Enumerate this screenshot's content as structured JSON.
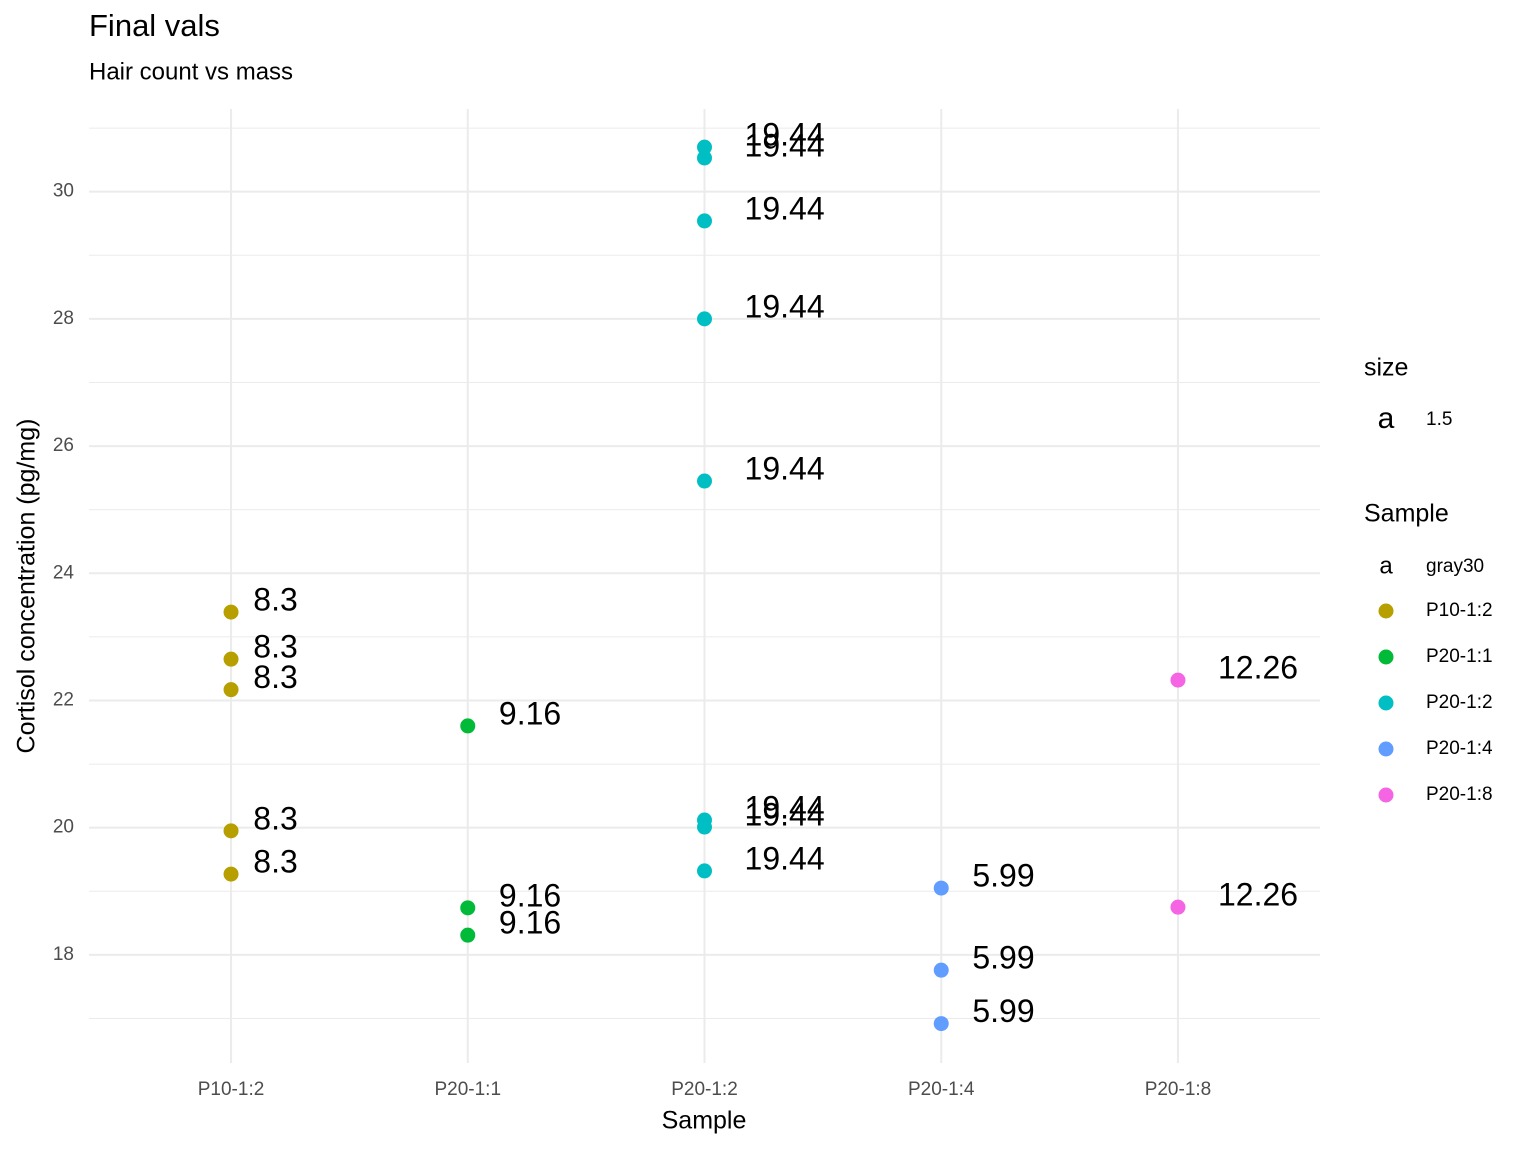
{
  "chart_data": {
    "type": "scatter",
    "title": "Final vals",
    "subtitle": "Hair count vs mass",
    "x_label": "Sample",
    "y_label": "Cortisol concentration (pg/mg)",
    "categories": [
      "P10-1:2",
      "P20-1:1",
      "P20-1:2",
      "P20-1:4",
      "P20-1:8"
    ],
    "ylim": [
      16.3,
      31.3
    ],
    "yticks": [
      18,
      20,
      22,
      24,
      26,
      28,
      30
    ],
    "y_minor_ticks": [
      17,
      19,
      21,
      23,
      25,
      27,
      29,
      31
    ],
    "grid": true,
    "label_color": "#F8766D",
    "series": [
      {
        "name": "P10-1:2",
        "color": "#B79F00",
        "x": "P10-1:2",
        "values": [
          23.39,
          22.65,
          22.17,
          19.95,
          19.27
        ],
        "labels": [
          8.3,
          8.3,
          8.3,
          8.3,
          8.3
        ]
      },
      {
        "name": "P20-1:1",
        "color": "#00BA38",
        "x": "P20-1:1",
        "values": [
          21.6,
          18.74,
          18.31
        ],
        "labels": [
          9.16,
          9.16,
          9.16
        ]
      },
      {
        "name": "P20-1:2",
        "color": "#00BFC4",
        "x": "P20-1:2",
        "values": [
          30.7,
          30.53,
          29.54,
          28.0,
          25.45,
          20.12,
          20.01,
          19.32
        ],
        "labels": [
          19.44,
          19.44,
          19.44,
          19.44,
          19.44,
          19.44,
          19.44,
          19.44
        ]
      },
      {
        "name": "P20-1:4",
        "color": "#619CFF",
        "x": "P20-1:4",
        "values": [
          19.05,
          17.76,
          16.92
        ],
        "labels": [
          5.99,
          5.99,
          5.99
        ]
      },
      {
        "name": "P20-1:8",
        "color": "#F564E3",
        "x": "P20-1:8",
        "values": [
          22.32,
          18.75
        ],
        "labels": [
          12.26,
          12.26
        ]
      }
    ],
    "legend": {
      "size_title": "size",
      "size_key": "a",
      "size_value": 1.5,
      "title": "Sample",
      "text_key": "a",
      "text_name": "gray30"
    }
  }
}
